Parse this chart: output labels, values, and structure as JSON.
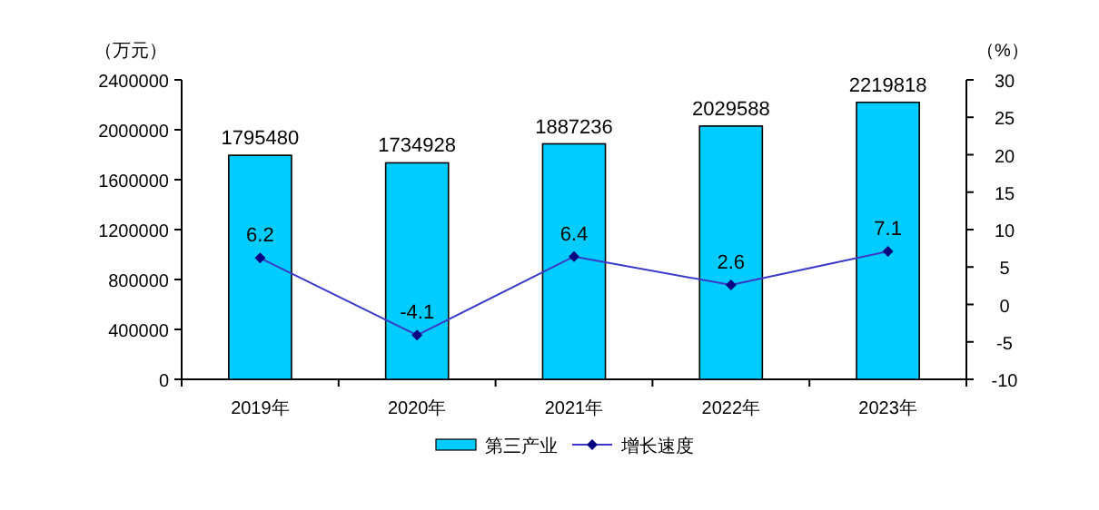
{
  "chart_data": {
    "type": "bar",
    "categories": [
      "2019年",
      "2020年",
      "2021年",
      "2022年",
      "2023年"
    ],
    "ylabel": "（万元）",
    "y2label": "（%）",
    "ylim": [
      0,
      2400000
    ],
    "yticks": [
      0,
      400000,
      800000,
      1200000,
      1600000,
      2000000,
      2400000
    ],
    "y2lim": [
      -10,
      30
    ],
    "y2ticks": [
      -10,
      -5,
      0,
      5,
      10,
      15,
      20,
      25,
      30
    ],
    "data_labels": true,
    "legend": "bottom",
    "marker": "diamond",
    "series": [
      {
        "name": "第三产业",
        "color": "#00ccff",
        "values": [
          1795480,
          1734928,
          1887236,
          2029588,
          2219818
        ]
      },
      {
        "name": "增长速度",
        "type": "line",
        "axis": "y2",
        "color": "#3a3ac8",
        "values": [
          6.2,
          -4.1,
          6.4,
          2.6,
          7.1
        ]
      }
    ]
  }
}
